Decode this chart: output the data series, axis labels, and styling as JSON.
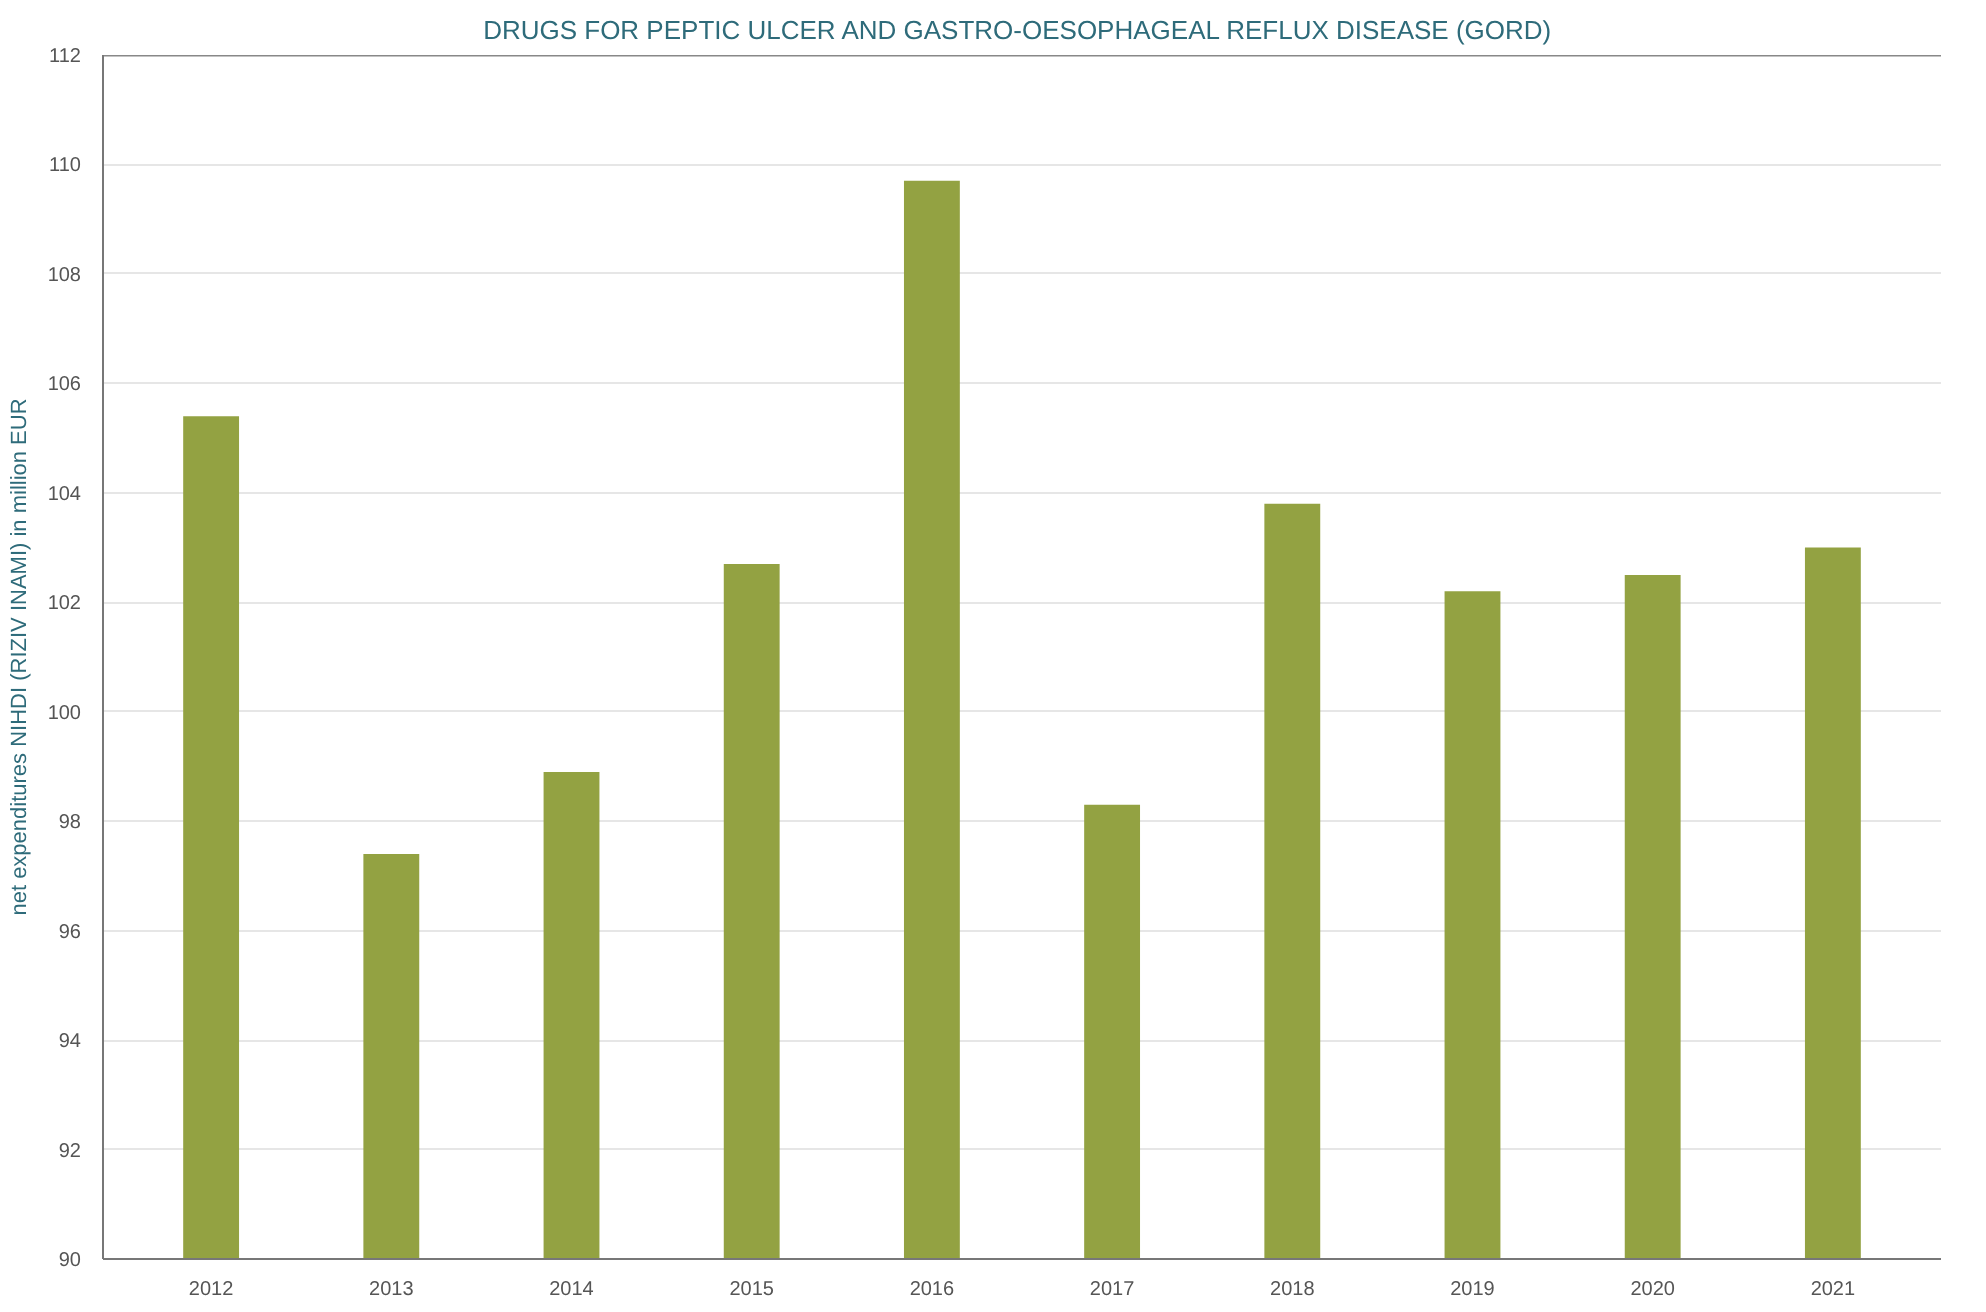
{
  "chart_data": {
    "type": "bar",
    "title": "DRUGS FOR PEPTIC ULCER AND GASTRO-OESOPHAGEAL  REFLUX DISEASE (GORD)",
    "ylabel": "net expenditures NIHDI (RIZIV INAMI) in million EUR",
    "categories": [
      "2012",
      "2013",
      "2014",
      "2015",
      "2016",
      "2017",
      "2018",
      "2019",
      "2020",
      "2021"
    ],
    "values": [
      105.4,
      97.4,
      98.9,
      102.7,
      109.7,
      98.3,
      103.8,
      102.2,
      102.5,
      103.0
    ],
    "color": "#93a242",
    "ylim": [
      90,
      112
    ],
    "yticks": [
      90,
      92,
      94,
      96,
      98,
      100,
      102,
      104,
      106,
      108,
      110,
      112
    ],
    "grid": "y"
  }
}
